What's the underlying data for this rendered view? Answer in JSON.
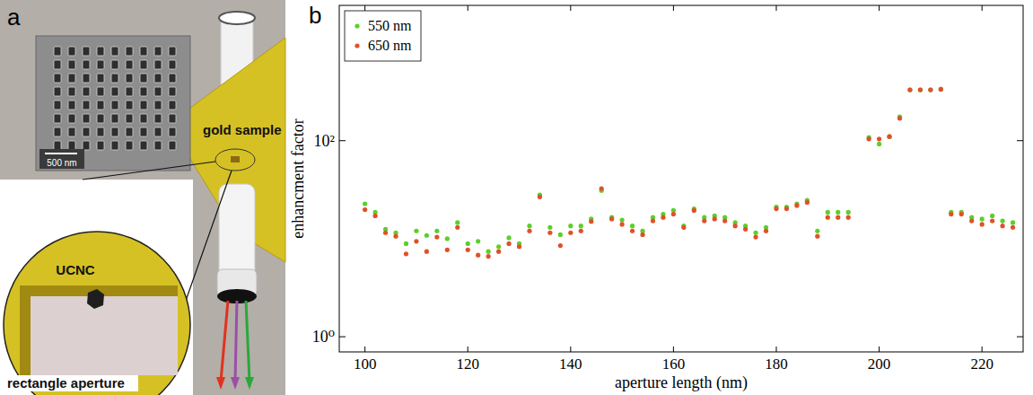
{
  "figure": {
    "panel_a": {
      "letter": "a",
      "gold_label": "gold sample",
      "particle_label": "UCNC",
      "aperture_label": "rectangle aperture",
      "scale_bar": "500 nm"
    },
    "panel_b_letter": "b"
  },
  "chart_data": {
    "type": "scatter",
    "x_label": "aperture length (nm)",
    "y_label": "enhancment factor",
    "log": "y",
    "grid": false,
    "legend": "upper left",
    "xlim": [
      95,
      228
    ],
    "xticks": [
      100,
      120,
      140,
      160,
      180,
      200,
      220
    ],
    "ylim": [
      0.7,
      2400
    ],
    "yticks": [
      {
        "value": 1,
        "label": "10⁰"
      },
      {
        "value": 100,
        "label": "10²"
      }
    ],
    "x": [
      100,
      102,
      104,
      106,
      108,
      110,
      112,
      114,
      116,
      118,
      120,
      122,
      124,
      126,
      128,
      130,
      132,
      134,
      136,
      138,
      140,
      142,
      144,
      146,
      148,
      150,
      152,
      154,
      156,
      158,
      160,
      162,
      164,
      166,
      168,
      170,
      172,
      174,
      176,
      178,
      180,
      182,
      184,
      186,
      188,
      190,
      192,
      194,
      198,
      200,
      202,
      204,
      206,
      208,
      210,
      212,
      214,
      216,
      218,
      220,
      222,
      224,
      226
    ],
    "series": [
      {
        "name": "550 nm",
        "color": "#5ccf2a",
        "marker": "circle",
        "values": [
          22.7,
          18.6,
          12.5,
          11.5,
          8.9,
          12,
          10.8,
          12,
          10,
          14.6,
          8.9,
          9.4,
          7.4,
          8.3,
          10.2,
          8.9,
          13.5,
          28,
          13,
          11,
          13.5,
          13.5,
          15.9,
          31,
          16.5,
          15.5,
          13.5,
          12,
          16.5,
          17.8,
          19.4,
          13.5,
          20.2,
          16.5,
          17.1,
          16.5,
          14.6,
          13.5,
          11.5,
          13,
          21,
          21,
          22.7,
          24.6,
          12,
          18.6,
          18.6,
          18.6,
          108,
          92.4,
          110,
          175,
          330,
          330,
          330,
          335,
          18.6,
          18.6,
          16.5,
          15.9,
          17.1,
          15.2,
          14.6
        ]
      },
      {
        "name": "650 nm",
        "color": "#e1502b",
        "marker": "circle",
        "values": [
          19.8,
          17.1,
          11.5,
          10.6,
          7.0,
          9.4,
          7.4,
          10.4,
          7.7,
          13,
          7.7,
          6.8,
          6.6,
          7.4,
          8.9,
          8.3,
          12,
          26.7,
          11.5,
          8.5,
          11.5,
          12,
          15,
          32.5,
          15.9,
          14,
          12,
          11,
          15.2,
          16.5,
          17.8,
          13,
          19.4,
          15.2,
          15.9,
          15.2,
          13.5,
          12.5,
          10.4,
          12,
          20.2,
          20.2,
          21.8,
          23.5,
          10.6,
          16.5,
          16.5,
          16.5,
          104,
          104,
          110,
          169,
          330,
          330,
          330,
          335,
          17.8,
          17.8,
          15.2,
          14,
          15.2,
          13.5,
          13
        ]
      }
    ]
  }
}
